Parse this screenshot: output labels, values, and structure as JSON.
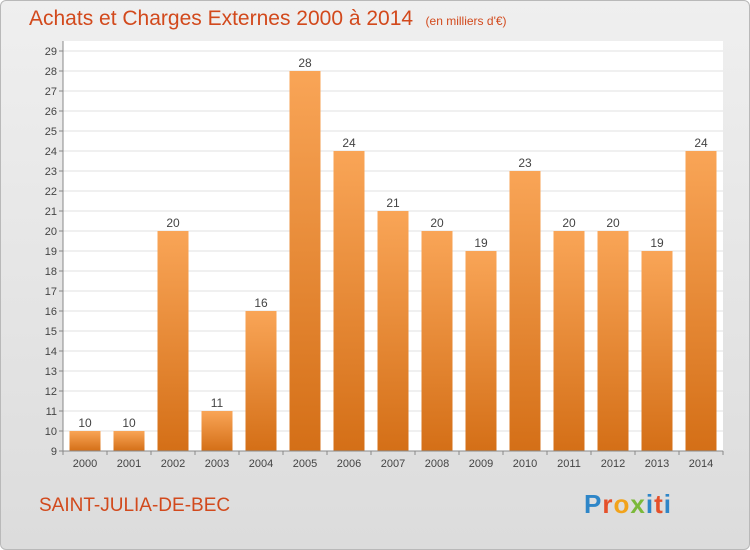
{
  "header": {
    "title": "Achats et Charges Externes 2000 à 2014",
    "unit": "(en milliers d'€)"
  },
  "commune": "SAINT-JULIA-DE-BEC",
  "logo": "Proxiti",
  "chart_data": {
    "type": "bar",
    "title": "Achats et Charges Externes 2000 à 2014",
    "subtitle": "(en milliers d'€)",
    "categories": [
      "2000",
      "2001",
      "2002",
      "2003",
      "2004",
      "2005",
      "2006",
      "2007",
      "2008",
      "2009",
      "2010",
      "2011",
      "2012",
      "2013",
      "2014"
    ],
    "values": [
      10,
      10,
      20,
      11,
      16,
      28,
      24,
      21,
      20,
      19,
      23,
      20,
      20,
      19,
      24
    ],
    "ylim": [
      9,
      29
    ],
    "yticks": [
      9,
      10,
      11,
      12,
      13,
      14,
      15,
      16,
      17,
      18,
      19,
      20,
      21,
      22,
      23,
      24,
      25,
      26,
      27,
      28,
      29
    ],
    "grid": true,
    "colors": {
      "bar_light": "#f9a557",
      "bar_dark": "#d46f17",
      "title": "#d2491c"
    }
  }
}
